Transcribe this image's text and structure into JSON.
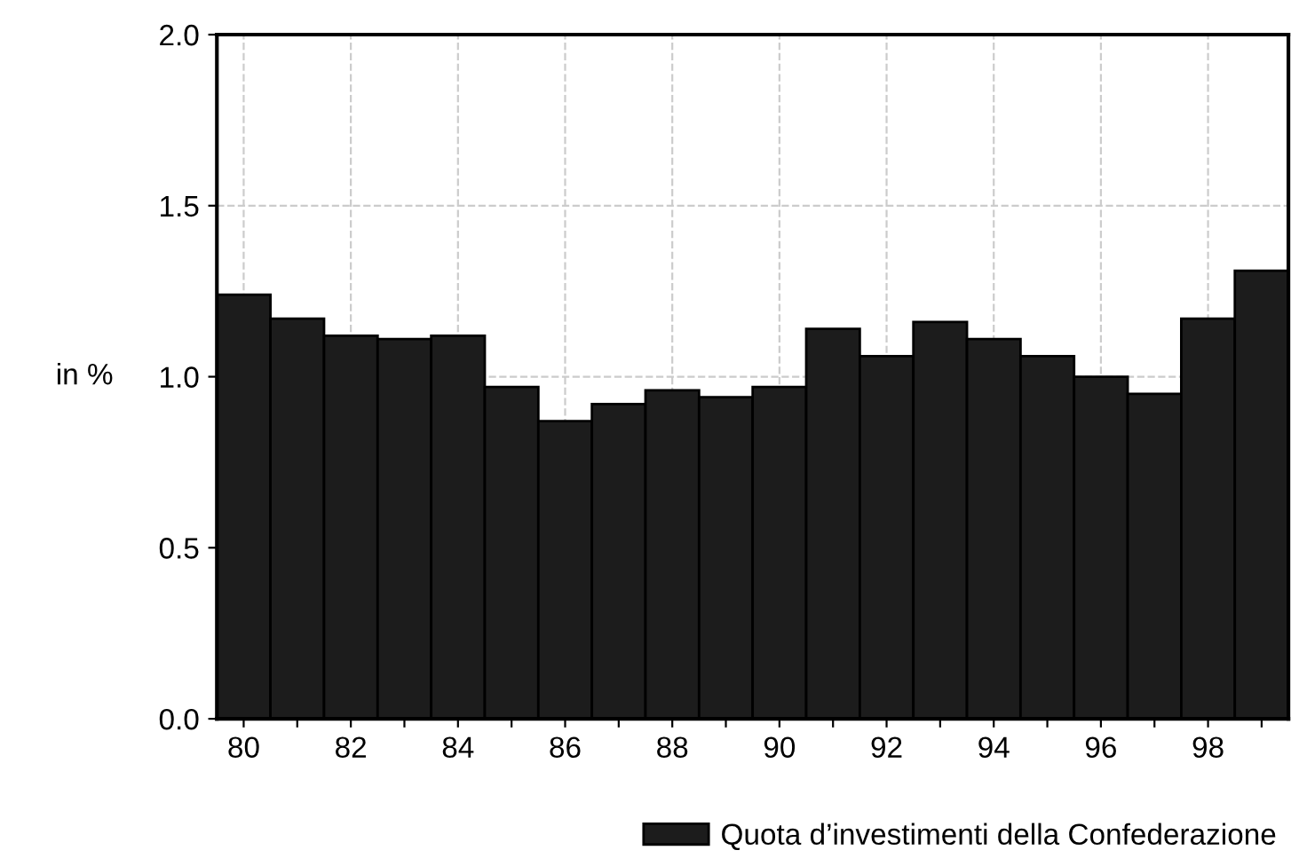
{
  "chart_data": {
    "type": "bar",
    "ylabel": "in %",
    "x": [
      80,
      81,
      82,
      83,
      84,
      85,
      86,
      87,
      88,
      89,
      90,
      91,
      92,
      93,
      94,
      95,
      96,
      97,
      98,
      99
    ],
    "series": [
      {
        "name": "Quota d’investimenti della Confederazione",
        "color": "#1c1c1c",
        "values": [
          1.24,
          1.17,
          1.12,
          1.11,
          1.12,
          0.97,
          0.87,
          0.92,
          0.96,
          0.94,
          0.97,
          1.14,
          1.06,
          1.16,
          1.11,
          1.06,
          1.0,
          0.95,
          1.17,
          1.31
        ]
      }
    ],
    "xlim": [
      79.5,
      99.5
    ],
    "xticks": [
      80,
      {
        "value": 81,
        "label": null
      },
      82,
      {
        "value": 83,
        "label": null
      },
      84,
      {
        "value": 85,
        "label": null
      },
      86,
      {
        "value": 87,
        "label": null
      },
      88,
      {
        "value": 89,
        "label": null
      },
      90,
      {
        "value": 91,
        "label": null
      },
      92,
      {
        "value": 93,
        "label": null
      },
      94,
      {
        "value": 95,
        "label": null
      },
      96,
      {
        "value": 97,
        "label": null
      },
      98,
      {
        "value": 99,
        "label": null
      }
    ],
    "ylim": [
      0,
      2.0
    ],
    "yticks": [
      {
        "value": 0,
        "label": "0.0"
      },
      {
        "value": 0.5,
        "label": "0.5"
      },
      {
        "value": 1.0,
        "label": "1.0"
      },
      {
        "value": 1.5,
        "label": "1.5"
      },
      {
        "value": 2.0,
        "label": "2.0"
      }
    ],
    "grid": true,
    "legend": "bottom right"
  }
}
